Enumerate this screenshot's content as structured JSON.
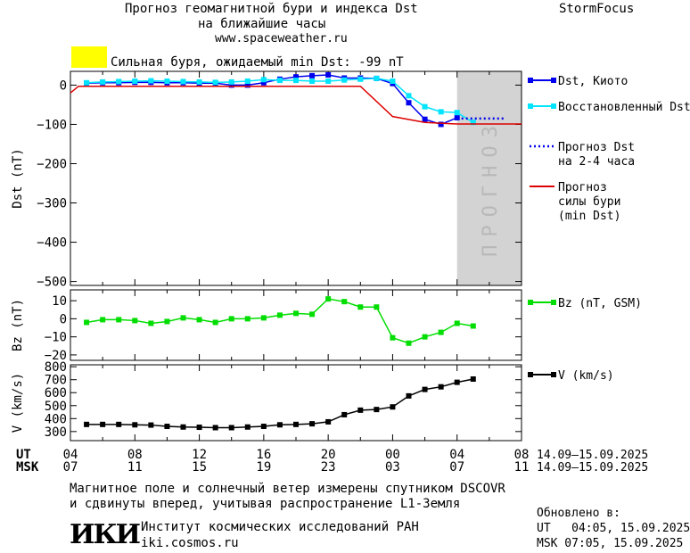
{
  "header": {
    "title_line1": "Прогноз геомагнитной бури и индекса Dst",
    "title_line2": "на ближайшие часы",
    "url": "www.spaceweather.ru",
    "brand": "StormFocus",
    "alert_text": "Сильная буря, ожидаемый min Dst: -99 nT",
    "alert_color": "#ffff00"
  },
  "colors": {
    "dst_kyoto": "#0000ee",
    "dst_restored": "#00e5ff",
    "dst_forecast": "#0000ee",
    "storm_forecast": "#dd0000",
    "bz": "#00dd00",
    "v": "#000000",
    "forecast_band": "#d3d3d3"
  },
  "forecast_band_label": "ПРОГНОЗ",
  "chart_data": [
    {
      "type": "line",
      "ylabel": "Dst (nT)",
      "ylim": [
        -510,
        35
      ],
      "yticks": [
        0,
        -100,
        -200,
        -300,
        -400,
        -500
      ],
      "ytick_labels": [
        "0",
        "−100",
        "−200",
        "−300",
        "−400",
        "−500"
      ],
      "xlim": [
        4,
        32
      ],
      "forecast_band_x": [
        28,
        32
      ],
      "series": [
        {
          "name": "Dst, Киото",
          "style": "line-square",
          "x": [
            5,
            6,
            7,
            8,
            9,
            10,
            11,
            12,
            13,
            14,
            15,
            16,
            17,
            18,
            19,
            20,
            21,
            22,
            23,
            24,
            25,
            26,
            27,
            28
          ],
          "y": [
            5,
            6,
            6,
            7,
            7,
            6,
            6,
            5,
            5,
            0,
            0,
            6,
            15,
            21,
            24,
            26,
            18,
            18,
            17,
            4,
            -45,
            -87,
            -100,
            -83
          ]
        },
        {
          "name": "Восстановленный Dst",
          "style": "line-square",
          "x": [
            5,
            6,
            7,
            8,
            9,
            10,
            11,
            12,
            13,
            14,
            15,
            16,
            17,
            18,
            19,
            20,
            21,
            22,
            23,
            24,
            25,
            26,
            27,
            28,
            29
          ],
          "y": [
            6,
            8,
            9,
            10,
            11,
            10,
            9,
            8,
            7,
            8,
            10,
            14,
            12,
            12,
            10,
            10,
            13,
            15,
            17,
            10,
            -27,
            -55,
            -68,
            -70,
            -95
          ]
        },
        {
          "name": "Прогноз Dst\nна 2-4 часа",
          "style": "dotted",
          "x": [
            28,
            31
          ],
          "y": [
            -85,
            -85
          ]
        },
        {
          "name": "Прогноз\nсилы бури\n(min Dst)",
          "style": "line",
          "x": [
            4,
            4.5,
            5,
            22,
            24,
            26,
            28,
            32
          ],
          "y": [
            -20,
            -3,
            -3,
            -3,
            -80,
            -95,
            -99,
            -99
          ]
        }
      ]
    },
    {
      "type": "line",
      "ylabel": "Bz (nT)",
      "ylim": [
        -23,
        16
      ],
      "yticks": [
        10,
        0,
        -10,
        -20
      ],
      "ytick_labels": [
        "10",
        "0",
        "−10",
        "−20"
      ],
      "xlim": [
        4,
        32
      ],
      "series": [
        {
          "name": "Bz (nT, GSM)",
          "style": "line-square",
          "x": [
            5,
            6,
            7,
            8,
            9,
            10,
            11,
            12,
            13,
            14,
            15,
            16,
            17,
            18,
            19,
            20,
            21,
            22,
            23,
            24,
            25,
            26,
            27,
            28,
            29
          ],
          "y": [
            -2,
            -0.5,
            -0.5,
            -1,
            -2.5,
            -1.5,
            0.5,
            -0.5,
            -2,
            0,
            0,
            0.5,
            2,
            3,
            2.5,
            11,
            9.5,
            6.5,
            6.5,
            -10.5,
            -13.5,
            -10,
            -7.5,
            -2.5,
            -4
          ]
        }
      ]
    },
    {
      "type": "line",
      "ylabel": "V (km/s)",
      "ylim": [
        230,
        815
      ],
      "yticks": [
        300,
        400,
        500,
        600,
        700,
        800
      ],
      "ytick_labels": [
        "300",
        "400",
        "500",
        "600",
        "700",
        "800"
      ],
      "xlim": [
        4,
        32
      ],
      "series": [
        {
          "name": "V (km/s)",
          "style": "line-square",
          "x": [
            5,
            6,
            7,
            8,
            9,
            10,
            11,
            12,
            13,
            14,
            15,
            16,
            17,
            18,
            19,
            20,
            21,
            22,
            23,
            24,
            25,
            26,
            27,
            28,
            29
          ],
          "y": [
            355,
            355,
            355,
            352,
            350,
            340,
            335,
            333,
            330,
            330,
            335,
            340,
            352,
            355,
            360,
            375,
            430,
            465,
            470,
            490,
            575,
            625,
            645,
            680,
            705
          ]
        }
      ]
    }
  ],
  "time_axis": {
    "ut_label": "UT",
    "msk_label": "MSK",
    "ticks_ut": [
      "04",
      "08",
      "12",
      "16",
      "20",
      "00",
      "04",
      "08"
    ],
    "ticks_msk": [
      "07",
      "11",
      "15",
      "19",
      "23",
      "03",
      "07",
      "11"
    ],
    "range_ut": "14.09–15.09.2025",
    "range_msk": "14.09–15.09.2025"
  },
  "footer": {
    "note_line1": "Магнитное поле и солнечный ветер измерены спутником DSCOVR",
    "note_line2": "и сдвинуты вперед, учитывая распространение L1-Земля",
    "logo": "ИКИ",
    "institute": "Институт космических исследований РАН",
    "institute_url": "iki.cosmos.ru",
    "updated_label": "Обновлено в:",
    "updated_ut": "UT   04:05, 15.09.2025",
    "updated_msk": "MSK 07:05, 15.09.2025"
  }
}
